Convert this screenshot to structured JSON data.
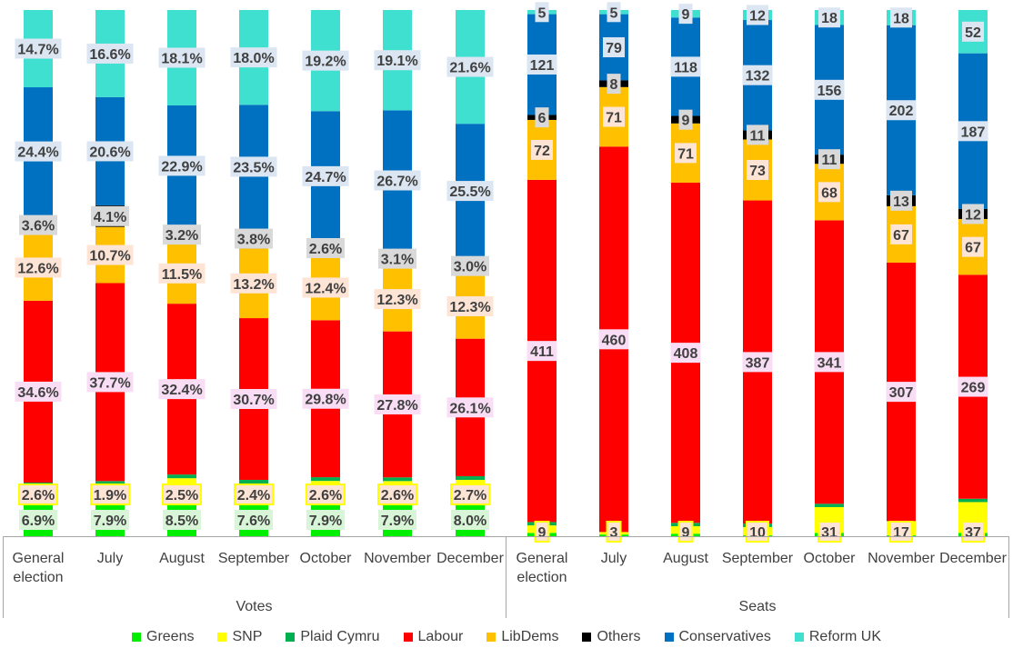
{
  "chart_data": {
    "type": "bar",
    "stacked": true,
    "legend_position": "bottom",
    "grid": false,
    "colors": {
      "Greens": "#00ee00",
      "SNP": "#ffff00",
      "Plaid Cymru": "#00b050",
      "Labour": "#ff0000",
      "LibDems": "#ffc000",
      "Others": "#000000",
      "Conservatives": "#0070c0",
      "Reform UK": "#40e0d0"
    },
    "legend": [
      "Greens",
      "SNP",
      "Plaid Cymru",
      "Labour",
      "LibDems",
      "Others",
      "Conservatives",
      "Reform UK"
    ],
    "groups": [
      {
        "label": "Votes",
        "unit": "%",
        "categories": [
          "General election",
          "July",
          "August",
          "September",
          "October",
          "November",
          "December"
        ],
        "series": [
          {
            "name": "Greens",
            "values": [
              6.9,
              7.9,
              8.5,
              7.6,
              7.9,
              7.9,
              8.0
            ]
          },
          {
            "name": "SNP",
            "values": [
              2.6,
              1.9,
              2.5,
              2.4,
              2.6,
              2.6,
              2.7
            ]
          },
          {
            "name": "Plaid Cymru",
            "values": [
              0.7,
              0.7,
              0.7,
              0.7,
              0.7,
              0.7,
              0.7
            ]
          },
          {
            "name": "Labour",
            "values": [
              34.6,
              37.7,
              32.4,
              30.7,
              29.8,
              27.8,
              26.1
            ]
          },
          {
            "name": "LibDems",
            "values": [
              12.6,
              10.7,
              11.5,
              13.2,
              12.4,
              12.3,
              12.3
            ]
          },
          {
            "name": "Others",
            "values": [
              3.6,
              4.1,
              3.2,
              3.8,
              2.6,
              3.1,
              3.0
            ]
          },
          {
            "name": "Conservatives",
            "values": [
              24.4,
              20.6,
              22.9,
              23.5,
              24.7,
              26.7,
              25.5
            ]
          },
          {
            "name": "Reform UK",
            "values": [
              14.7,
              16.6,
              18.1,
              18.0,
              19.2,
              19.1,
              21.6
            ]
          }
        ],
        "labeled_series": [
          "Greens",
          "SNP",
          "Labour",
          "LibDems",
          "Others",
          "Conservatives",
          "Reform UK"
        ]
      },
      {
        "label": "Seats",
        "unit": "",
        "categories": [
          "General election",
          "July",
          "August",
          "September",
          "October",
          "November",
          "December"
        ],
        "series": [
          {
            "name": "Greens",
            "values": [
              4,
              2,
              3,
              1,
              4,
              1,
              4
            ]
          },
          {
            "name": "SNP",
            "values": [
              9,
              3,
              9,
              10,
              31,
              17,
              37
            ]
          },
          {
            "name": "Plaid Cymru",
            "values": [
              4,
              0,
              4,
              4,
              4,
              0,
              4
            ]
          },
          {
            "name": "Labour",
            "values": [
              411,
              460,
              408,
              387,
              341,
              307,
              269
            ]
          },
          {
            "name": "LibDems",
            "values": [
              72,
              71,
              71,
              73,
              68,
              67,
              67
            ]
          },
          {
            "name": "Others",
            "values": [
              6,
              8,
              9,
              11,
              11,
              13,
              12
            ]
          },
          {
            "name": "Conservatives",
            "values": [
              121,
              79,
              118,
              132,
              156,
              202,
              187
            ]
          },
          {
            "name": "Reform UK",
            "values": [
              5,
              5,
              9,
              12,
              18,
              18,
              52
            ]
          }
        ],
        "labeled_series": [
          "SNP",
          "Labour",
          "LibDems",
          "Others",
          "Conservatives",
          "Reform UK"
        ]
      }
    ]
  }
}
